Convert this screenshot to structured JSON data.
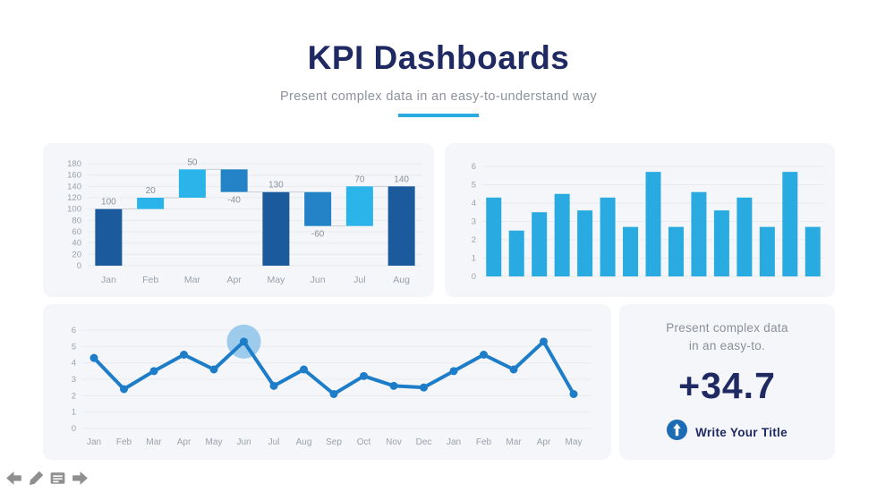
{
  "page": {
    "title": "KPI Dashboards",
    "subtitle": "Present complex data in an easy-to-understand way",
    "accent_color": "#29ABE2",
    "title_color": "#1F2A63"
  },
  "chart_data": [
    {
      "id": "waterfall",
      "type": "bar",
      "subtype": "waterfall",
      "title": "",
      "categories": [
        "Jan",
        "Feb",
        "Mar",
        "Apr",
        "May",
        "Jun",
        "Jul",
        "Aug"
      ],
      "values": [
        100,
        20,
        50,
        -40,
        130,
        -60,
        70,
        140
      ],
      "labels": [
        "100",
        "20",
        "50",
        "-40",
        "130",
        "-60",
        "70",
        "140"
      ],
      "bar_roles": [
        "total",
        "increase",
        "increase",
        "decrease",
        "total",
        "decrease",
        "increase",
        "total"
      ],
      "ylim": [
        0,
        180
      ],
      "yticks": [
        0,
        20,
        40,
        60,
        80,
        100,
        120,
        140,
        160,
        180
      ],
      "grid": true,
      "legend": "none",
      "colors": {
        "total": "#1B5A9D",
        "increase": "#2AB4E9",
        "decrease": "#2383C6"
      }
    },
    {
      "id": "bars",
      "type": "bar",
      "categories": [
        "",
        "",
        "",
        "",
        "",
        "",
        "",
        "",
        "",
        "",
        "",
        "",
        "",
        "",
        ""
      ],
      "values": [
        4.3,
        2.5,
        3.5,
        4.5,
        3.6,
        4.3,
        2.7,
        5.7,
        2.7,
        4.6,
        3.6,
        4.3,
        2.7,
        5.7,
        2.7
      ],
      "ylim": [
        0,
        6
      ],
      "yticks": [
        0,
        1,
        2,
        3,
        4,
        5,
        6
      ],
      "grid": true,
      "legend": "none",
      "color": "#29ABE2"
    },
    {
      "id": "line",
      "type": "line",
      "categories": [
        "Jan",
        "Feb",
        "Mar",
        "Apr",
        "May",
        "Jun",
        "Jul",
        "Aug",
        "Sep",
        "Oct",
        "Nov",
        "Dec",
        "Jan",
        "Feb",
        "Mar",
        "Apr",
        "May"
      ],
      "values": [
        4.3,
        2.4,
        3.5,
        4.5,
        3.6,
        5.3,
        2.6,
        3.6,
        2.1,
        3.2,
        2.6,
        2.5,
        3.5,
        4.5,
        3.6,
        5.3,
        2.1
      ],
      "ylim": [
        0,
        6
      ],
      "yticks": [
        0,
        1,
        2,
        3,
        4,
        5,
        6
      ],
      "grid": true,
      "legend": "none",
      "color": "#1E7DC8",
      "marker": "circle",
      "highlight_index": 5,
      "highlight_color": "#93C6EA"
    }
  ],
  "stat_card": {
    "description_line1": "Present complex data",
    "description_line2": "in an easy-to.",
    "value": "+34.7",
    "cta_label": "Write Your Title",
    "icon": "up-arrow-circle-icon",
    "icon_color": "#1C6BB5"
  },
  "footer": {
    "icons": [
      "left-arrow-icon",
      "pencil-icon",
      "note-icon",
      "right-arrow-icon"
    ],
    "color": "#8F8F8F"
  },
  "style": {
    "axis_text_color": "#9AA2AC",
    "value_label_color": "#8A919B",
    "grid_color": "#E8EBEF",
    "connector_color": "#C8CDD4",
    "card_bg": "#F4F6F9"
  }
}
